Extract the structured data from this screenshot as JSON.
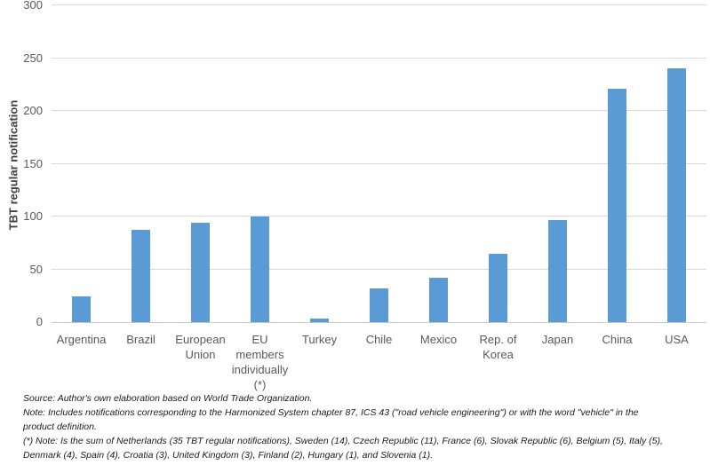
{
  "chart_data": {
    "type": "bar",
    "title": "",
    "xlabel": "",
    "ylabel": "TBT regular notification",
    "ylim": [
      0,
      300
    ],
    "yticks": [
      0,
      50,
      100,
      150,
      200,
      250,
      300
    ],
    "grid": true,
    "legend": false,
    "categories": [
      "Argentina",
      "Brazil",
      "European Union",
      "EU members individually (*)",
      "Turkey",
      "Chile",
      "Mexico",
      "Rep. of Korea",
      "Japan",
      "China",
      "USA"
    ],
    "category_tick_lines": [
      [
        "Argentina"
      ],
      [
        "Brazil"
      ],
      [
        "European",
        "Union"
      ],
      [
        "EU",
        "members",
        "individually",
        "(*)"
      ],
      [
        "Turkey"
      ],
      [
        "Chile"
      ],
      [
        "Mexico"
      ],
      [
        "Rep. of",
        "Korea"
      ],
      [
        "Japan"
      ],
      [
        "China"
      ],
      [
        "USA"
      ]
    ],
    "values": [
      24,
      87,
      94,
      100,
      3,
      32,
      42,
      65,
      97,
      221,
      240
    ]
  },
  "notes": {
    "lines": [
      "Source: Author's own elaboration based on World Trade Organization.",
      "Note: Includes notifications corresponding to the Harmonized System chapter 87, ICS 43 (\"road vehicle engineering\") or with the word \"vehicle\" in the",
      "product definition.",
      "(*) Note: Is the sum of Netherlands (35 TBT regular notifications), Sweden (14), Czech Republic (11), France (6), Slovak Republic (6), Belgium (5), Italy (5),",
      "Denmark (4), Spain (4), Croatia (3), United Kingdom (3), Finland (2), Hungary (1), and Slovenia (1)."
    ]
  },
  "colors": {
    "bar": "#5B9BD5",
    "gridline": "#D9D9D9",
    "axis_line": "#C6C6C6",
    "tick_label": "#595959",
    "axis_title": "#404040",
    "note_text": "#1A1A1A",
    "background": "#FFFFFF"
  }
}
